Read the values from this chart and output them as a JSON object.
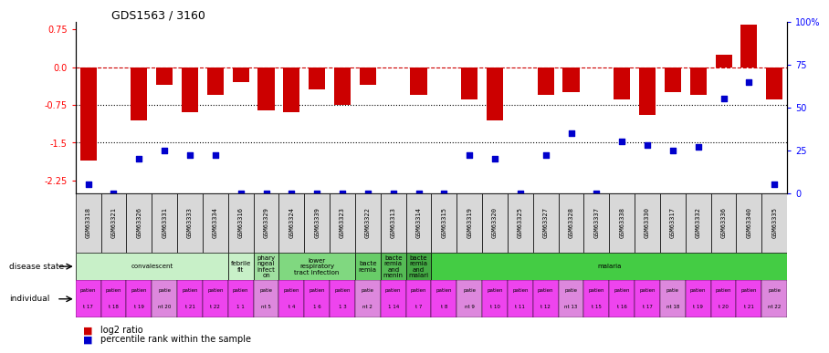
{
  "title": "GDS1563 / 3160",
  "samples": [
    "GSM63318",
    "GSM63321",
    "GSM63326",
    "GSM63331",
    "GSM63333",
    "GSM63334",
    "GSM63316",
    "GSM63329",
    "GSM63324",
    "GSM63339",
    "GSM63323",
    "GSM63322",
    "GSM63313",
    "GSM63314",
    "GSM63315",
    "GSM63319",
    "GSM63320",
    "GSM63325",
    "GSM63327",
    "GSM63328",
    "GSM63337",
    "GSM63338",
    "GSM63330",
    "GSM63317",
    "GSM63332",
    "GSM63336",
    "GSM63340",
    "GSM63335"
  ],
  "log2_ratio": [
    -1.85,
    0.0,
    -1.05,
    -0.35,
    -0.9,
    -0.55,
    -0.3,
    -0.85,
    -0.9,
    -0.45,
    -0.75,
    -0.35,
    0.0,
    -0.55,
    0.0,
    -0.65,
    -1.05,
    0.0,
    -0.55,
    -0.5,
    0.0,
    -0.65,
    -0.95,
    -0.5,
    -0.55,
    0.25,
    0.85,
    -0.65
  ],
  "percentile_rank": [
    5,
    0,
    20,
    25,
    22,
    22,
    0,
    0,
    0,
    0,
    0,
    0,
    0,
    0,
    0,
    22,
    20,
    0,
    22,
    35,
    0,
    30,
    28,
    25,
    27,
    55,
    65,
    5
  ],
  "disease_state_groups": [
    {
      "label": "convalescent",
      "start": 0,
      "end": 5,
      "color": "#c8f0c8"
    },
    {
      "label": "febrile\nfit",
      "start": 6,
      "end": 6,
      "color": "#c8f0c8"
    },
    {
      "label": "phary\nngeal\ninfect\non",
      "start": 7,
      "end": 7,
      "color": "#a0e0a0"
    },
    {
      "label": "lower\nrespiratory\ntract infection",
      "start": 8,
      "end": 10,
      "color": "#80d880"
    },
    {
      "label": "bacte\nremia",
      "start": 11,
      "end": 11,
      "color": "#68cc68"
    },
    {
      "label": "bacte\nremia\nand\nmenin",
      "start": 12,
      "end": 12,
      "color": "#55bb55"
    },
    {
      "label": "bacte\nremia\nand\nmalari",
      "start": 13,
      "end": 13,
      "color": "#44aa44"
    },
    {
      "label": "malaria",
      "start": 14,
      "end": 27,
      "color": "#44cc44"
    }
  ],
  "individual_colors": [
    "#ee44ee",
    "#ee44ee",
    "#ee44ee",
    "#dd88dd",
    "#ee44ee",
    "#ee44ee",
    "#ee44ee",
    "#dd88dd",
    "#ee44ee",
    "#ee44ee",
    "#ee44ee",
    "#dd88dd",
    "#ee44ee",
    "#ee44ee",
    "#ee44ee",
    "#dd88dd",
    "#ee44ee",
    "#ee44ee",
    "#ee44ee",
    "#dd88dd",
    "#ee44ee",
    "#ee44ee",
    "#ee44ee",
    "#dd88dd",
    "#ee44ee",
    "#ee44ee",
    "#ee44ee",
    "#dd88dd"
  ],
  "individual_labels_top": [
    "patien",
    "patien",
    "patien",
    "patie",
    "patien",
    "patien",
    "patien",
    "patie",
    "patien",
    "patien",
    "patien",
    "patie",
    "patien",
    "patien",
    "patien",
    "patie",
    "patien",
    "patien",
    "patien",
    "patie",
    "patien",
    "patien",
    "patien",
    "patie",
    "patien",
    "patien",
    "patien",
    "patie"
  ],
  "individual_labels_bot": [
    "t 17",
    "t 18",
    "t 19",
    "nt 20",
    "t 21",
    "t 22",
    "1 1",
    "nt 5",
    "t 4",
    "1 6",
    "1 3",
    "nt 2",
    "1 14",
    "t 7",
    "t 8",
    "nt 9",
    "t 10",
    "t 11",
    "t 12",
    "nt 13",
    "t 15",
    "t 16",
    "t 17",
    "nt 18",
    "t 19",
    "t 20",
    "t 21",
    "nt 22"
  ],
  "ylim_left": [
    -2.5,
    0.9
  ],
  "yticks_left": [
    0.75,
    0.0,
    -0.75,
    -1.5,
    -2.25
  ],
  "yticks_right": [
    100,
    75,
    50,
    25,
    0
  ],
  "bar_color": "#cc0000",
  "dot_color": "#0000cc",
  "dashed_line_color": "#cc0000",
  "dotted_line_color": "#000000",
  "bg_color": "#ffffff",
  "sample_bg_color": "#d8d8d8"
}
